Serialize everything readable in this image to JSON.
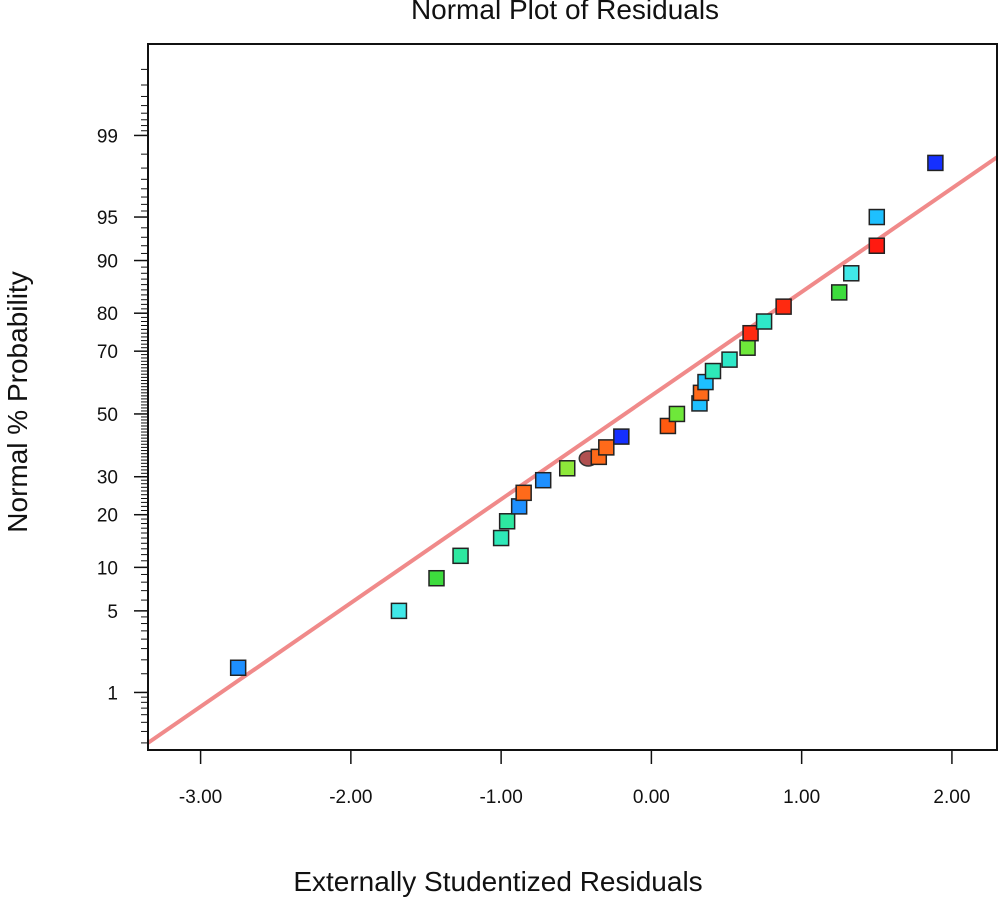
{
  "chart_data": {
    "type": "scatter",
    "title": "Normal Plot of Residuals",
    "xlabel": "Externally Studentized Residuals",
    "ylabel": "Normal % Probability",
    "x_scale": "linear",
    "y_scale": "normal-probability",
    "xlim": [
      -3.35,
      2.3
    ],
    "ylim": [
      0.25,
      99.9
    ],
    "x_ticks": [
      -3.0,
      -2.0,
      -1.0,
      0.0,
      1.0,
      2.0
    ],
    "x_tick_labels": [
      "-3.00",
      "-2.00",
      "-1.00",
      "0.00",
      "1.00",
      "2.00"
    ],
    "y_ticks": [
      1,
      5,
      10,
      20,
      30,
      50,
      70,
      80,
      90,
      95,
      99
    ],
    "y_tick_labels": [
      "1",
      "5",
      "10",
      "20",
      "30",
      "50",
      "70",
      "80",
      "90",
      "95",
      "99"
    ],
    "reference_line": {
      "x": [
        -3.35,
        2.3
      ],
      "y": [
        0.3,
        98.4
      ],
      "color": "#f08a8a"
    },
    "points": [
      {
        "x": -2.75,
        "y": 1.7,
        "marker": "square",
        "color": "#1e90ff"
      },
      {
        "x": -1.68,
        "y": 5.0,
        "marker": "square",
        "color": "#40e8e8"
      },
      {
        "x": -1.43,
        "y": 8.5,
        "marker": "square",
        "color": "#3ddc3d"
      },
      {
        "x": -1.27,
        "y": 11.8,
        "marker": "square",
        "color": "#2ee8a0"
      },
      {
        "x": -1.0,
        "y": 15.0,
        "marker": "square",
        "color": "#2ee8b8"
      },
      {
        "x": -0.96,
        "y": 18.5,
        "marker": "square",
        "color": "#2ee8a0"
      },
      {
        "x": -0.88,
        "y": 22.0,
        "marker": "square",
        "color": "#1e90ff"
      },
      {
        "x": -0.85,
        "y": 25.5,
        "marker": "square",
        "color": "#ff6a1a"
      },
      {
        "x": -0.72,
        "y": 29.0,
        "marker": "square",
        "color": "#1e90ff"
      },
      {
        "x": -0.56,
        "y": 32.5,
        "marker": "square",
        "color": "#8ee83a"
      },
      {
        "x": -0.42,
        "y": 35.5,
        "marker": "circle",
        "color": "#b05050"
      },
      {
        "x": -0.35,
        "y": 36.0,
        "marker": "square",
        "color": "#ff6a1a"
      },
      {
        "x": -0.3,
        "y": 39.0,
        "marker": "square",
        "color": "#ff6a1a"
      },
      {
        "x": -0.2,
        "y": 42.5,
        "marker": "square",
        "color": "#1530ff"
      },
      {
        "x": 0.11,
        "y": 46.0,
        "marker": "square",
        "color": "#ff5a10"
      },
      {
        "x": 0.17,
        "y": 50.0,
        "marker": "square",
        "color": "#6ee83a"
      },
      {
        "x": 0.32,
        "y": 53.5,
        "marker": "square",
        "color": "#1ec0ff"
      },
      {
        "x": 0.33,
        "y": 57.0,
        "marker": "square",
        "color": "#ff6a1a"
      },
      {
        "x": 0.36,
        "y": 60.5,
        "marker": "square",
        "color": "#1ec0ff"
      },
      {
        "x": 0.41,
        "y": 64.0,
        "marker": "square",
        "color": "#2ee8b8"
      },
      {
        "x": 0.52,
        "y": 67.5,
        "marker": "square",
        "color": "#2ee8c8"
      },
      {
        "x": 0.64,
        "y": 71.0,
        "marker": "square",
        "color": "#6ee83a"
      },
      {
        "x": 0.66,
        "y": 75.0,
        "marker": "square",
        "color": "#ff2a10"
      },
      {
        "x": 0.75,
        "y": 78.0,
        "marker": "square",
        "color": "#2ee8c8"
      },
      {
        "x": 0.88,
        "y": 81.5,
        "marker": "square",
        "color": "#ff2a10"
      },
      {
        "x": 1.25,
        "y": 84.5,
        "marker": "square",
        "color": "#3ddc3d"
      },
      {
        "x": 1.33,
        "y": 88.0,
        "marker": "square",
        "color": "#40e8e8"
      },
      {
        "x": 1.5,
        "y": 92.0,
        "marker": "square",
        "color": "#ff1a10"
      },
      {
        "x": 1.5,
        "y": 95.0,
        "marker": "square",
        "color": "#1ec0ff"
      },
      {
        "x": 1.89,
        "y": 98.2,
        "marker": "square",
        "color": "#1530ff"
      }
    ]
  }
}
